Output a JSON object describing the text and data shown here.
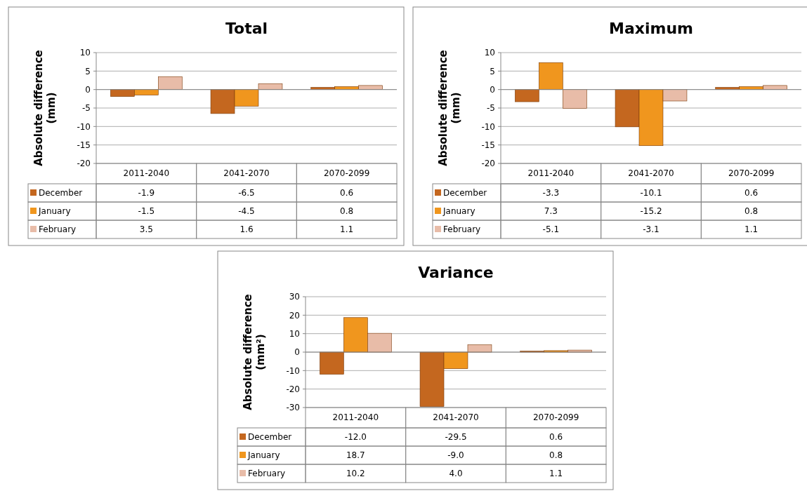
{
  "chart_data": [
    {
      "type": "bar",
      "title": "Total",
      "ylabel": "Absolute difference (mm)",
      "categories": [
        "2011-2040",
        "2041-2070",
        "2070-2099"
      ],
      "series": [
        {
          "name": "December",
          "color": "#c4671f",
          "values": [
            -1.9,
            -6.5,
            0.6
          ],
          "value_labels": [
            "-1.9",
            "-6.5",
            "0.6"
          ]
        },
        {
          "name": "January",
          "color": "#f0961e",
          "values": [
            -1.5,
            -4.5,
            0.8
          ],
          "value_labels": [
            "-1.5",
            "-4.5",
            "0.8"
          ]
        },
        {
          "name": "February",
          "color": "#e8bca8",
          "values": [
            3.5,
            1.6,
            1.1
          ],
          "value_labels": [
            "3.5",
            "1.6",
            "1.1"
          ]
        }
      ],
      "ylim": [
        -20,
        10
      ],
      "yticks": [
        -20,
        -15,
        -10,
        -5,
        0,
        5,
        10
      ],
      "grid": "y",
      "legend": "bottom"
    },
    {
      "type": "bar",
      "title": "Maximum",
      "ylabel": "Absolute difference (mm)",
      "categories": [
        "2011-2040",
        "2041-2070",
        "2070-2099"
      ],
      "series": [
        {
          "name": "December",
          "color": "#c4671f",
          "values": [
            -3.3,
            -10.1,
            0.6
          ],
          "value_labels": [
            "-3.3",
            "-10.1",
            "0.6"
          ]
        },
        {
          "name": "January",
          "color": "#f0961e",
          "values": [
            7.3,
            -15.2,
            0.8
          ],
          "value_labels": [
            "7.3",
            "-15.2",
            "0.8"
          ]
        },
        {
          "name": "February",
          "color": "#e8bca8",
          "values": [
            -5.1,
            -3.1,
            1.1
          ],
          "value_labels": [
            "-5.1",
            "-3.1",
            "1.1"
          ]
        }
      ],
      "ylim": [
        -20,
        10
      ],
      "yticks": [
        -20,
        -15,
        -10,
        -5,
        0,
        5,
        10
      ],
      "grid": "y",
      "legend": "bottom"
    },
    {
      "type": "bar",
      "title": "Variance",
      "ylabel": "Absolute difference (mm²)",
      "categories": [
        "2011-2040",
        "2041-2070",
        "2070-2099"
      ],
      "series": [
        {
          "name": "December",
          "color": "#c4671f",
          "values": [
            -12.0,
            -29.5,
            0.6
          ],
          "value_labels": [
            "-12.0",
            "-29.5",
            "0.6"
          ]
        },
        {
          "name": "January",
          "color": "#f0961e",
          "values": [
            18.7,
            -9.0,
            0.8
          ],
          "value_labels": [
            "18.7",
            "-9.0",
            "0.8"
          ]
        },
        {
          "name": "February",
          "color": "#e8bca8",
          "values": [
            10.2,
            4.0,
            1.1
          ],
          "value_labels": [
            "10.2",
            "4.0",
            "1.1"
          ]
        }
      ],
      "ylim": [
        -30,
        30
      ],
      "yticks": [
        -30,
        -20,
        -10,
        0,
        10,
        20,
        30
      ],
      "grid": "y",
      "legend": "bottom"
    }
  ]
}
